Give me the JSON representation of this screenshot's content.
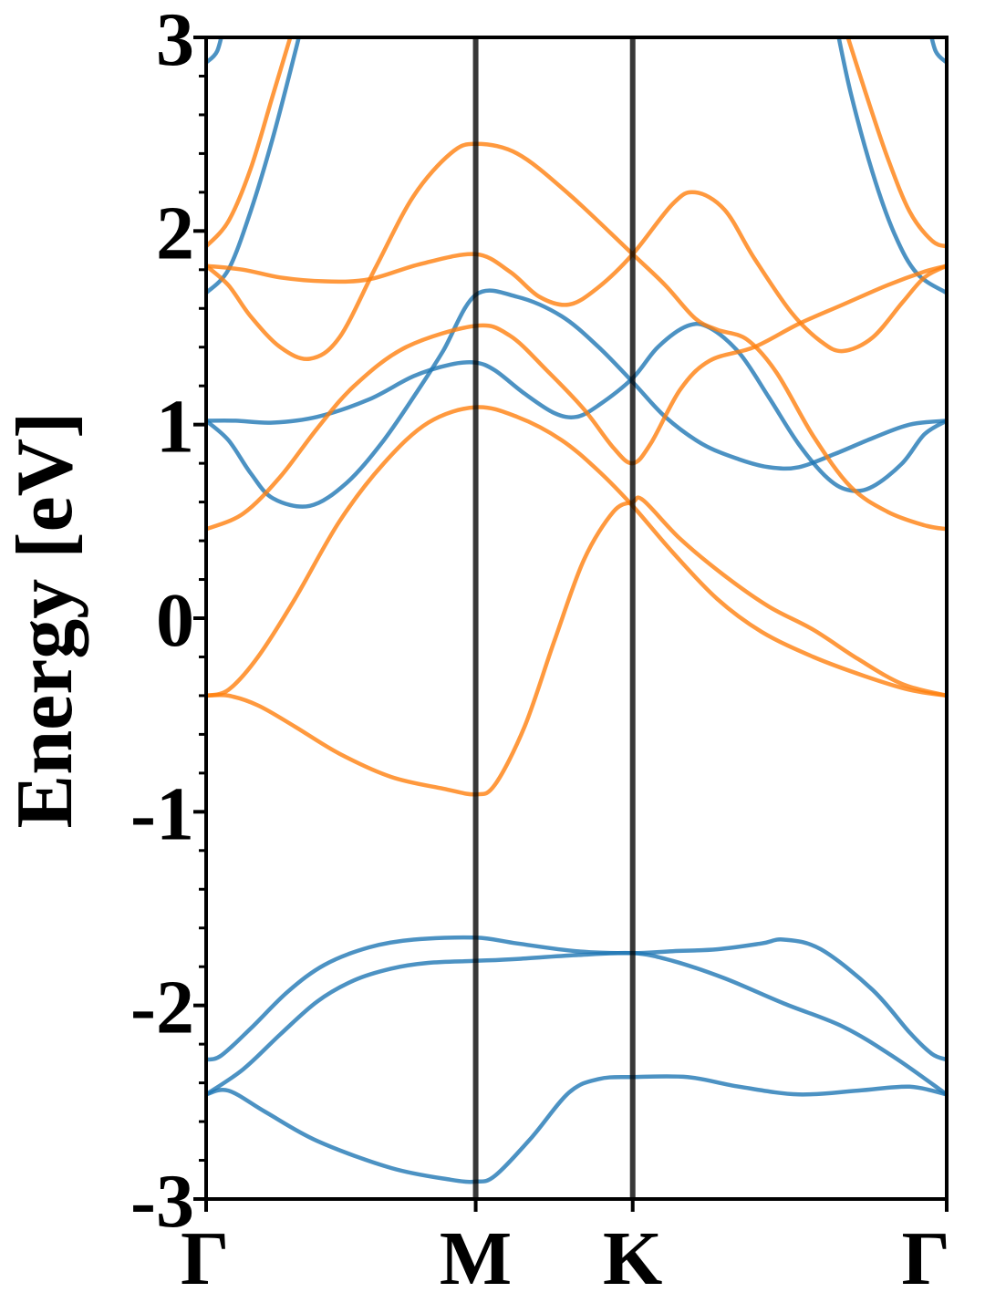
{
  "chart_data": {
    "type": "line",
    "ylabel": "Energy [eV]",
    "ylim": [
      -3,
      3
    ],
    "xlim": [
      0,
      1
    ],
    "y_ticks": [
      {
        "value": 3,
        "label": "3"
      },
      {
        "value": 2,
        "label": "2"
      },
      {
        "value": 1,
        "label": "1"
      },
      {
        "value": 0,
        "label": "0"
      },
      {
        "value": -1,
        "label": "-1"
      },
      {
        "value": -2,
        "label": "-2"
      },
      {
        "value": -3,
        "label": "-3"
      }
    ],
    "y_minor_step": 0.2,
    "k_points": [
      {
        "label": "Γ",
        "x": 0
      },
      {
        "label": "M",
        "x": 0.364
      },
      {
        "label": "K",
        "x": 0.576
      },
      {
        "label": "Γ",
        "x": 1
      }
    ],
    "vlines": [
      0.364,
      0.576
    ],
    "colors": {
      "spin_up": "#1f77b4",
      "spin_down": "#ff7f0e",
      "vline": "#000000"
    },
    "grid": false,
    "series": [
      {
        "color": "spin_up",
        "points": [
          [
            0,
            -2.46
          ],
          [
            0.03,
            -2.44
          ],
          [
            0.08,
            -2.55
          ],
          [
            0.15,
            -2.7
          ],
          [
            0.25,
            -2.84
          ],
          [
            0.33,
            -2.9
          ],
          [
            0.364,
            -2.91
          ],
          [
            0.39,
            -2.88
          ],
          [
            0.44,
            -2.68
          ],
          [
            0.49,
            -2.45
          ],
          [
            0.53,
            -2.38
          ],
          [
            0.576,
            -2.37
          ],
          [
            0.65,
            -2.37
          ],
          [
            0.72,
            -2.42
          ],
          [
            0.8,
            -2.46
          ],
          [
            0.88,
            -2.44
          ],
          [
            0.95,
            -2.42
          ],
          [
            1,
            -2.46
          ]
        ]
      },
      {
        "color": "spin_up",
        "points": [
          [
            0,
            -2.46
          ],
          [
            0.05,
            -2.33
          ],
          [
            0.1,
            -2.15
          ],
          [
            0.15,
            -1.98
          ],
          [
            0.2,
            -1.87
          ],
          [
            0.25,
            -1.81
          ],
          [
            0.3,
            -1.78
          ],
          [
            0.364,
            -1.77
          ],
          [
            0.42,
            -1.76
          ],
          [
            0.5,
            -1.74
          ],
          [
            0.576,
            -1.73
          ],
          [
            0.63,
            -1.77
          ],
          [
            0.7,
            -1.86
          ],
          [
            0.78,
            -1.99
          ],
          [
            0.86,
            -2.11
          ],
          [
            0.93,
            -2.27
          ],
          [
            1,
            -2.46
          ]
        ]
      },
      {
        "color": "spin_up",
        "points": [
          [
            0,
            -2.28
          ],
          [
            0.02,
            -2.26
          ],
          [
            0.06,
            -2.12
          ],
          [
            0.11,
            -1.93
          ],
          [
            0.16,
            -1.79
          ],
          [
            0.22,
            -1.7
          ],
          [
            0.28,
            -1.66
          ],
          [
            0.364,
            -1.65
          ],
          [
            0.42,
            -1.68
          ],
          [
            0.5,
            -1.72
          ],
          [
            0.576,
            -1.73
          ],
          [
            0.63,
            -1.72
          ],
          [
            0.69,
            -1.71
          ],
          [
            0.75,
            -1.68
          ],
          [
            0.78,
            -1.66
          ],
          [
            0.83,
            -1.71
          ],
          [
            0.9,
            -1.92
          ],
          [
            0.95,
            -2.14
          ],
          [
            0.98,
            -2.25
          ],
          [
            1,
            -2.28
          ]
        ]
      },
      {
        "color": "spin_up",
        "points": [
          [
            0,
            1.02
          ],
          [
            0.03,
            0.92
          ],
          [
            0.06,
            0.75
          ],
          [
            0.09,
            0.62
          ],
          [
            0.14,
            0.58
          ],
          [
            0.19,
            0.7
          ],
          [
            0.24,
            0.92
          ],
          [
            0.29,
            1.2
          ],
          [
            0.32,
            1.38
          ],
          [
            0.364,
            1.67
          ],
          [
            0.42,
            1.66
          ],
          [
            0.48,
            1.56
          ],
          [
            0.53,
            1.4
          ],
          [
            0.576,
            1.22
          ],
          [
            0.62,
            1.04
          ],
          [
            0.67,
            0.9
          ],
          [
            0.72,
            0.82
          ],
          [
            0.76,
            0.78
          ],
          [
            0.8,
            0.78
          ],
          [
            0.85,
            0.85
          ],
          [
            0.9,
            0.93
          ],
          [
            0.95,
            1.0
          ],
          [
            1,
            1.02
          ]
        ]
      },
      {
        "color": "spin_up",
        "points": [
          [
            0,
            1.02
          ],
          [
            0.04,
            1.02
          ],
          [
            0.09,
            1.01
          ],
          [
            0.15,
            1.04
          ],
          [
            0.22,
            1.13
          ],
          [
            0.28,
            1.25
          ],
          [
            0.33,
            1.31
          ],
          [
            0.364,
            1.32
          ],
          [
            0.39,
            1.28
          ],
          [
            0.43,
            1.16
          ],
          [
            0.47,
            1.06
          ],
          [
            0.5,
            1.04
          ],
          [
            0.53,
            1.1
          ],
          [
            0.576,
            1.24
          ],
          [
            0.61,
            1.4
          ],
          [
            0.65,
            1.51
          ],
          [
            0.68,
            1.5
          ],
          [
            0.72,
            1.37
          ],
          [
            0.76,
            1.14
          ],
          [
            0.8,
            0.9
          ],
          [
            0.84,
            0.72
          ],
          [
            0.87,
            0.66
          ],
          [
            0.9,
            0.68
          ],
          [
            0.94,
            0.8
          ],
          [
            0.97,
            0.95
          ],
          [
            1,
            1.02
          ]
        ]
      },
      {
        "color": "spin_up",
        "points": [
          [
            0,
            1.68
          ],
          [
            0.03,
            1.8
          ],
          [
            0.06,
            2.1
          ],
          [
            0.09,
            2.48
          ],
          [
            0.12,
            2.92
          ],
          [
            0.13,
            3.08
          ]
        ]
      },
      {
        "color": "spin_up",
        "points": [
          [
            0.85,
            3.08
          ],
          [
            0.87,
            2.72
          ],
          [
            0.9,
            2.3
          ],
          [
            0.93,
            1.98
          ],
          [
            0.96,
            1.78
          ],
          [
            1,
            1.68
          ]
        ]
      },
      {
        "color": "spin_up",
        "points": [
          [
            0,
            2.87
          ],
          [
            0.015,
            2.93
          ],
          [
            0.025,
            3.08
          ]
        ]
      },
      {
        "color": "spin_up",
        "points": [
          [
            0.975,
            3.08
          ],
          [
            0.985,
            2.93
          ],
          [
            1,
            2.87
          ]
        ]
      },
      {
        "color": "spin_down",
        "points": [
          [
            0,
            -0.4
          ],
          [
            0.03,
            -0.4
          ],
          [
            0.07,
            -0.45
          ],
          [
            0.12,
            -0.56
          ],
          [
            0.18,
            -0.7
          ],
          [
            0.25,
            -0.82
          ],
          [
            0.32,
            -0.88
          ],
          [
            0.364,
            -0.91
          ],
          [
            0.39,
            -0.86
          ],
          [
            0.43,
            -0.56
          ],
          [
            0.47,
            -0.12
          ],
          [
            0.51,
            0.3
          ],
          [
            0.55,
            0.55
          ],
          [
            0.576,
            0.6
          ],
          [
            0.59,
            0.61
          ],
          [
            0.64,
            0.41
          ],
          [
            0.7,
            0.22
          ],
          [
            0.76,
            0.06
          ],
          [
            0.82,
            -0.06
          ],
          [
            0.88,
            -0.21
          ],
          [
            0.94,
            -0.34
          ],
          [
            1,
            -0.4
          ]
        ]
      },
      {
        "color": "spin_down",
        "points": [
          [
            0,
            -0.4
          ],
          [
            0.03,
            -0.37
          ],
          [
            0.07,
            -0.2
          ],
          [
            0.12,
            0.1
          ],
          [
            0.18,
            0.5
          ],
          [
            0.24,
            0.8
          ],
          [
            0.3,
            1.01
          ],
          [
            0.364,
            1.09
          ],
          [
            0.42,
            1.04
          ],
          [
            0.48,
            0.92
          ],
          [
            0.53,
            0.76
          ],
          [
            0.576,
            0.58
          ],
          [
            0.63,
            0.34
          ],
          [
            0.69,
            0.1
          ],
          [
            0.75,
            -0.07
          ],
          [
            0.82,
            -0.2
          ],
          [
            0.89,
            -0.3
          ],
          [
            0.95,
            -0.37
          ],
          [
            1,
            -0.4
          ]
        ]
      },
      {
        "color": "spin_down",
        "points": [
          [
            0,
            0.46
          ],
          [
            0.05,
            0.54
          ],
          [
            0.1,
            0.73
          ],
          [
            0.15,
            0.98
          ],
          [
            0.2,
            1.2
          ],
          [
            0.27,
            1.4
          ],
          [
            0.364,
            1.51
          ],
          [
            0.41,
            1.46
          ],
          [
            0.46,
            1.28
          ],
          [
            0.51,
            1.08
          ],
          [
            0.55,
            0.88
          ],
          [
            0.576,
            0.8
          ],
          [
            0.6,
            0.9
          ],
          [
            0.64,
            1.18
          ],
          [
            0.68,
            1.33
          ],
          [
            0.74,
            1.4
          ],
          [
            0.8,
            1.52
          ],
          [
            0.86,
            1.62
          ],
          [
            0.92,
            1.72
          ],
          [
            0.97,
            1.79
          ],
          [
            1,
            1.82
          ]
        ]
      },
      {
        "color": "spin_down",
        "points": [
          [
            0,
            1.82
          ],
          [
            0.03,
            1.72
          ],
          [
            0.06,
            1.56
          ],
          [
            0.1,
            1.4
          ],
          [
            0.14,
            1.34
          ],
          [
            0.18,
            1.45
          ],
          [
            0.23,
            1.82
          ],
          [
            0.28,
            2.18
          ],
          [
            0.33,
            2.4
          ],
          [
            0.364,
            2.45
          ],
          [
            0.42,
            2.4
          ],
          [
            0.49,
            2.19
          ],
          [
            0.576,
            1.88
          ],
          [
            0.62,
            1.72
          ],
          [
            0.66,
            1.55
          ],
          [
            0.69,
            1.49
          ],
          [
            0.73,
            1.44
          ],
          [
            0.77,
            1.27
          ],
          [
            0.82,
            0.94
          ],
          [
            0.87,
            0.68
          ],
          [
            0.92,
            0.55
          ],
          [
            0.97,
            0.48
          ],
          [
            1,
            0.46
          ]
        ]
      },
      {
        "color": "spin_down",
        "points": [
          [
            0,
            1.82
          ],
          [
            0.05,
            1.8
          ],
          [
            0.1,
            1.76
          ],
          [
            0.16,
            1.74
          ],
          [
            0.22,
            1.75
          ],
          [
            0.29,
            1.83
          ],
          [
            0.364,
            1.88
          ],
          [
            0.41,
            1.79
          ],
          [
            0.45,
            1.66
          ],
          [
            0.49,
            1.62
          ],
          [
            0.53,
            1.71
          ],
          [
            0.576,
            1.88
          ],
          [
            0.63,
            2.14
          ],
          [
            0.66,
            2.2
          ],
          [
            0.7,
            2.11
          ],
          [
            0.74,
            1.86
          ],
          [
            0.79,
            1.58
          ],
          [
            0.83,
            1.43
          ],
          [
            0.86,
            1.38
          ],
          [
            0.9,
            1.45
          ],
          [
            0.94,
            1.63
          ],
          [
            0.97,
            1.76
          ],
          [
            1,
            1.82
          ]
        ]
      },
      {
        "color": "spin_down",
        "points": [
          [
            0,
            1.92
          ],
          [
            0.03,
            2.05
          ],
          [
            0.06,
            2.32
          ],
          [
            0.09,
            2.7
          ],
          [
            0.12,
            3.08
          ]
        ]
      },
      {
        "color": "spin_down",
        "points": [
          [
            0.86,
            3.08
          ],
          [
            0.89,
            2.72
          ],
          [
            0.92,
            2.38
          ],
          [
            0.95,
            2.1
          ],
          [
            0.98,
            1.95
          ],
          [
            1,
            1.92
          ]
        ]
      }
    ]
  }
}
